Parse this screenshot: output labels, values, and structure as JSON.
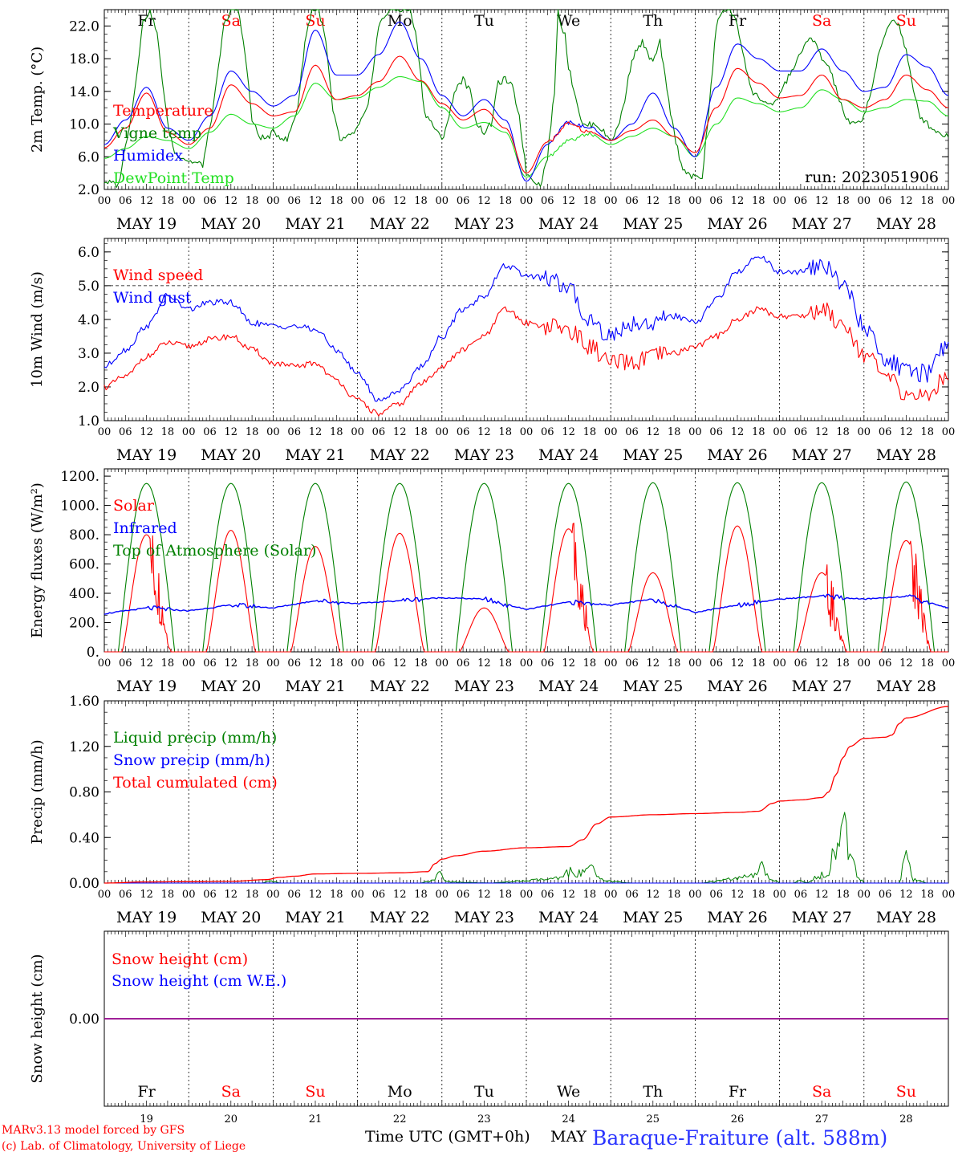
{
  "footer": {
    "credit_line1": "MARv3.13 model forced by GFS",
    "credit_line2": "(c) Lab. of Climatology, University of Liege",
    "x_axis_title": "Time UTC (GMT+0h)",
    "month": "MAY",
    "station": "Baraque-Fraiture (alt. 588m)"
  },
  "colors": {
    "red": "#ff0000",
    "blue": "#0000ff",
    "dark_green": "#008000",
    "light_green": "#22e022",
    "weekend": "#ff0000",
    "weekday": "#000000",
    "station": "#2b35ff"
  },
  "chart_data": [
    {
      "id": "temp",
      "type": "line",
      "ylabel": "2m Temp. (°C)",
      "ylim": [
        2,
        24
      ],
      "yticks": [
        2,
        6,
        10,
        14,
        18,
        22
      ],
      "ytick_labels": [
        "2.0",
        "6.0",
        "10.0",
        "14.0",
        "18.0",
        "22.0"
      ],
      "annotation": "run: 2023051906",
      "day_abbrev": [
        "Fr",
        "Sa",
        "Su",
        "Mo",
        "Tu",
        "We",
        "Th",
        "Fr",
        "Sa",
        "Su"
      ],
      "x_unit": "hours since May 19 00 UTC",
      "series": [
        {
          "name": "Temperature",
          "color": "#ff0000",
          "x": [
            0,
            6,
            12,
            18,
            24,
            30,
            36,
            42,
            48,
            54,
            60,
            66,
            72,
            78,
            84,
            90,
            96,
            102,
            108,
            114,
            120,
            126,
            132,
            138,
            144,
            150,
            156,
            162,
            168,
            174,
            180,
            186,
            192,
            198,
            204,
            210,
            216,
            222,
            228,
            234,
            240
          ],
          "y": [
            7.1,
            9.5,
            13.8,
            9.0,
            7.5,
            9.5,
            14.8,
            12.5,
            11.0,
            11.5,
            17.2,
            13.0,
            13.5,
            15.2,
            18.3,
            15.3,
            12.5,
            10.5,
            11.8,
            9.5,
            4.0,
            7.8,
            10.0,
            9.0,
            8.0,
            9.2,
            10.5,
            8.5,
            6.5,
            12.0,
            16.8,
            15.0,
            13.2,
            13.5,
            16.0,
            13.0,
            12.0,
            13.0,
            16.0,
            14.2,
            12.0
          ]
        },
        {
          "name": "Vigne temp",
          "color": "#008000",
          "x": [
            0,
            4,
            8,
            11,
            13,
            15,
            18,
            20,
            24,
            28,
            31,
            34,
            36,
            38,
            40,
            42,
            44,
            46,
            48,
            52,
            55,
            57,
            59,
            61,
            63,
            65,
            67,
            70,
            72,
            75,
            78,
            81,
            84,
            87,
            89,
            91,
            94,
            96,
            98,
            100,
            102,
            104,
            106,
            108,
            110,
            112,
            114,
            116,
            118,
            120,
            124,
            126,
            128,
            129,
            130,
            131,
            132,
            136,
            140,
            142,
            144,
            146,
            148,
            150,
            152,
            153,
            154,
            156,
            158,
            160,
            162,
            164,
            167,
            170,
            172,
            174,
            176,
            178,
            180,
            182,
            184,
            187,
            190,
            193,
            196,
            198,
            200,
            202,
            204,
            206,
            208,
            210,
            212,
            214,
            216,
            218,
            220,
            222,
            224,
            226,
            228,
            230,
            232,
            234,
            237,
            240
          ],
          "y": [
            3.0,
            2.5,
            12.0,
            22.5,
            24,
            21,
            10.0,
            6.5,
            5.5,
            5.0,
            12.0,
            22.0,
            24,
            24,
            19.0,
            10.5,
            8.5,
            8.2,
            9.0,
            8.0,
            12.0,
            20.0,
            24,
            24,
            20.0,
            11.5,
            8.0,
            8.5,
            9.5,
            12.0,
            22.0,
            24,
            24,
            24,
            20.0,
            11.5,
            9.5,
            8.0,
            11.0,
            14.5,
            15.5,
            14.0,
            10.0,
            9.0,
            10.0,
            15.0,
            15.5,
            14.5,
            11.0,
            4.0,
            2.5,
            6.0,
            14.0,
            24,
            22.0,
            21.0,
            17.0,
            9.8,
            10.0,
            9.0,
            8.0,
            9.5,
            13.0,
            18.0,
            19.5,
            20.0,
            19.0,
            17.5,
            20.0,
            14.0,
            9.0,
            5.0,
            3.5,
            3.5,
            12.0,
            22.0,
            24,
            24,
            22.0,
            18.0,
            14.0,
            13.0,
            12.0,
            14.5,
            17.0,
            18.5,
            20.5,
            20.0,
            18.0,
            17.0,
            14.5,
            11.5,
            10.0,
            10.0,
            11.0,
            14.0,
            18.0,
            21.0,
            23.0,
            22.0,
            19.0,
            14.0,
            11.0,
            10.0,
            9.0,
            8.5
          ]
        },
        {
          "name": "Humidex",
          "color": "#0000ff",
          "x": [
            0,
            6,
            12,
            18,
            24,
            30,
            36,
            42,
            48,
            54,
            60,
            66,
            72,
            78,
            84,
            90,
            96,
            102,
            108,
            114,
            120,
            126,
            132,
            138,
            144,
            150,
            156,
            162,
            168,
            174,
            180,
            186,
            192,
            198,
            204,
            210,
            216,
            222,
            228,
            234,
            240
          ],
          "y": [
            7.5,
            10.5,
            14.5,
            9.5,
            8.0,
            11.0,
            16.5,
            14.0,
            12.2,
            13.5,
            21.5,
            16.0,
            16.0,
            18.5,
            22.5,
            18.0,
            13.5,
            11.0,
            13.0,
            10.5,
            3.0,
            7.5,
            10.2,
            9.5,
            8.0,
            10.0,
            13.8,
            9.5,
            6.0,
            14.5,
            19.8,
            18.0,
            16.5,
            16.5,
            19.2,
            16.5,
            14.0,
            14.5,
            18.5,
            17.0,
            13.5
          ]
        },
        {
          "name": "DewPoint Temp",
          "color": "#22e022",
          "x": [
            0,
            6,
            12,
            18,
            24,
            30,
            36,
            42,
            48,
            54,
            60,
            66,
            72,
            78,
            84,
            90,
            96,
            102,
            108,
            114,
            120,
            126,
            132,
            138,
            144,
            150,
            156,
            162,
            168,
            174,
            180,
            186,
            192,
            198,
            204,
            210,
            216,
            222,
            228,
            234,
            240
          ],
          "y": [
            5.8,
            7.0,
            8.5,
            8.0,
            7.0,
            9.0,
            11.2,
            10.0,
            9.5,
            11.0,
            15.0,
            13.0,
            13.2,
            14.5,
            15.8,
            15.2,
            12.0,
            9.5,
            10.2,
            9.0,
            3.5,
            6.0,
            8.0,
            8.8,
            7.5,
            8.5,
            9.5,
            8.5,
            6.0,
            10.0,
            13.2,
            12.5,
            11.5,
            12.0,
            14.2,
            13.0,
            11.5,
            12.0,
            13.0,
            12.8,
            11.0
          ]
        }
      ]
    },
    {
      "id": "wind",
      "type": "line",
      "ylabel": "10m Wind (m/s)",
      "ylim": [
        1,
        6.4
      ],
      "yticks": [
        1,
        2,
        3,
        4,
        5,
        6
      ],
      "ytick_labels": [
        "1.0",
        "2.0",
        "3.0",
        "4.0",
        "5.0",
        "6.0"
      ],
      "reference_line": 5.0,
      "x_unit": "hours since May 19 00 UTC",
      "series": [
        {
          "name": "Wind speed",
          "color": "#ff0000",
          "x": [
            0,
            6,
            12,
            18,
            24,
            30,
            36,
            42,
            48,
            54,
            60,
            66,
            72,
            78,
            84,
            90,
            96,
            102,
            108,
            114,
            120,
            126,
            132,
            138,
            144,
            150,
            156,
            162,
            168,
            174,
            180,
            186,
            192,
            198,
            204,
            210,
            216,
            222,
            228,
            234,
            240
          ],
          "y": [
            2.0,
            2.3,
            2.9,
            3.3,
            3.2,
            3.4,
            3.5,
            3.1,
            2.7,
            2.6,
            2.7,
            2.2,
            1.6,
            1.2,
            1.5,
            2.1,
            2.6,
            3.1,
            3.5,
            4.3,
            3.9,
            3.8,
            3.7,
            3.2,
            2.7,
            2.7,
            2.9,
            3.0,
            3.2,
            3.5,
            4.0,
            4.3,
            4.1,
            4.1,
            4.3,
            3.9,
            3.0,
            2.3,
            1.8,
            1.7,
            2.4
          ]
        },
        {
          "name": "Wind gust",
          "color": "#0000ff",
          "x": [
            0,
            6,
            12,
            18,
            24,
            30,
            36,
            42,
            48,
            54,
            60,
            66,
            72,
            78,
            84,
            90,
            96,
            102,
            108,
            114,
            120,
            126,
            132,
            138,
            144,
            150,
            156,
            162,
            168,
            174,
            180,
            186,
            192,
            198,
            204,
            210,
            216,
            222,
            228,
            234,
            240
          ],
          "y": [
            2.6,
            3.1,
            3.8,
            4.7,
            4.3,
            4.5,
            4.5,
            3.9,
            3.8,
            3.8,
            3.7,
            3.1,
            2.4,
            1.6,
            1.9,
            2.6,
            3.5,
            4.3,
            4.7,
            5.6,
            5.3,
            5.2,
            4.9,
            4.0,
            3.5,
            3.9,
            3.9,
            4.1,
            3.9,
            4.6,
            5.4,
            5.9,
            5.4,
            5.4,
            5.6,
            5.1,
            3.8,
            2.8,
            2.5,
            2.4,
            3.3
          ]
        }
      ]
    },
    {
      "id": "energy",
      "type": "line",
      "ylabel": "Energy fluxes (W/m²)",
      "ylim": [
        0,
        1250
      ],
      "yticks": [
        0,
        200,
        400,
        600,
        800,
        1000,
        1200
      ],
      "ytick_labels": [
        "0.",
        "200.",
        "400.",
        "600.",
        "800.",
        "1000.",
        "1200."
      ],
      "x_unit": "hours since May 19 00 UTC",
      "series": [
        {
          "name": "Solar",
          "color": "#ff0000",
          "daily_peak": [
            800,
            830,
            720,
            810,
            300,
            840,
            540,
            860,
            540,
            760
          ]
        },
        {
          "name": "Infrared",
          "color": "#0000ff",
          "x": [
            0,
            12,
            24,
            36,
            48,
            60,
            72,
            84,
            96,
            108,
            120,
            132,
            144,
            156,
            168,
            180,
            192,
            204,
            216,
            228,
            240
          ],
          "y": [
            260,
            300,
            280,
            320,
            300,
            350,
            330,
            350,
            370,
            360,
            290,
            340,
            320,
            360,
            270,
            320,
            360,
            380,
            360,
            380,
            300
          ]
        },
        {
          "name": "Top of Atmosphere (Solar)",
          "color": "#008000",
          "daily_peak": [
            1150,
            1150,
            1150,
            1150,
            1150,
            1150,
            1155,
            1155,
            1155,
            1160
          ]
        }
      ]
    },
    {
      "id": "precip",
      "type": "line",
      "ylabel": "Precip (mm/h)",
      "ylim": [
        0,
        1.6
      ],
      "yticks": [
        0,
        0.4,
        0.8,
        1.2,
        1.6
      ],
      "ytick_labels": [
        "0.00",
        "0.40",
        "0.80",
        "1.20",
        "1.60"
      ],
      "x_unit": "hours since May 19 00 UTC",
      "series": [
        {
          "name": "Liquid precip (mm/h)",
          "color": "#008000",
          "x": [
            0,
            40,
            45,
            47,
            50,
            60,
            72,
            90,
            94,
            95,
            96,
            98,
            110,
            130,
            132,
            136,
            138,
            140,
            142,
            150,
            160,
            170,
            185,
            187,
            189,
            192,
            196,
            198,
            200,
            206,
            210,
            212,
            214,
            216,
            218,
            226,
            228,
            230,
            234,
            240
          ],
          "y": [
            0,
            0,
            0,
            0.02,
            0,
            0,
            0,
            0,
            0.03,
            0.14,
            0.05,
            0.01,
            0,
            0.04,
            0.1,
            0.08,
            0.15,
            0.05,
            0.02,
            0,
            0,
            0,
            0.06,
            0.14,
            0.05,
            0,
            0,
            0.02,
            0,
            0.12,
            0.54,
            0.2,
            0.08,
            0,
            0,
            0,
            0.26,
            0.03,
            0,
            0
          ]
        },
        {
          "name": "Snow precip (mm/h)",
          "color": "#0000ff",
          "x": [
            0,
            240
          ],
          "y": [
            0,
            0
          ]
        },
        {
          "name": "Total cumulated (cm)",
          "color": "#ff0000",
          "x": [
            0,
            12,
            24,
            36,
            46,
            50,
            54,
            60,
            72,
            84,
            92,
            94,
            96,
            100,
            108,
            120,
            132,
            136,
            140,
            144,
            156,
            168,
            180,
            186,
            190,
            192,
            198,
            204,
            206,
            208,
            210,
            212,
            216,
            222,
            224,
            226,
            228,
            240
          ],
          "y": [
            0,
            0.01,
            0.012,
            0.015,
            0.03,
            0.05,
            0.06,
            0.08,
            0.085,
            0.09,
            0.1,
            0.17,
            0.21,
            0.24,
            0.28,
            0.31,
            0.32,
            0.38,
            0.52,
            0.58,
            0.6,
            0.61,
            0.62,
            0.63,
            0.7,
            0.72,
            0.73,
            0.75,
            0.8,
            0.95,
            1.1,
            1.2,
            1.27,
            1.28,
            1.3,
            1.4,
            1.45,
            1.55
          ]
        }
      ]
    },
    {
      "id": "snow",
      "type": "line",
      "ylabel": "Snow height (cm)",
      "ylim": [
        -1,
        1
      ],
      "yticks": [
        0
      ],
      "ytick_labels": [
        "0.00"
      ],
      "x_unit": "hours since May 19 00 UTC",
      "day_abbrev": [
        "Fr",
        "Sa",
        "Su",
        "Mo",
        "Tu",
        "We",
        "Th",
        "Fr",
        "Sa",
        "Su"
      ],
      "day_numbers": [
        "19",
        "20",
        "21",
        "22",
        "23",
        "24",
        "25",
        "26",
        "27",
        "28"
      ],
      "series": [
        {
          "name": "Snow height (cm)",
          "color": "#ff0000",
          "x": [
            0,
            240
          ],
          "y": [
            0,
            0
          ]
        },
        {
          "name": "Snow height (cm W.E.)",
          "color": "#0000ff",
          "x": [
            0,
            240
          ],
          "y": [
            0,
            0
          ]
        }
      ]
    }
  ],
  "x_axis": {
    "hour_labels": [
      "00",
      "06",
      "12",
      "18"
    ],
    "final_hour_label": "00",
    "day_labels": [
      "MAY 19",
      "MAY 20",
      "MAY 21",
      "MAY 22",
      "MAY 23",
      "MAY 24",
      "MAY 25",
      "MAY 26",
      "MAY 27",
      "MAY 28"
    ]
  }
}
